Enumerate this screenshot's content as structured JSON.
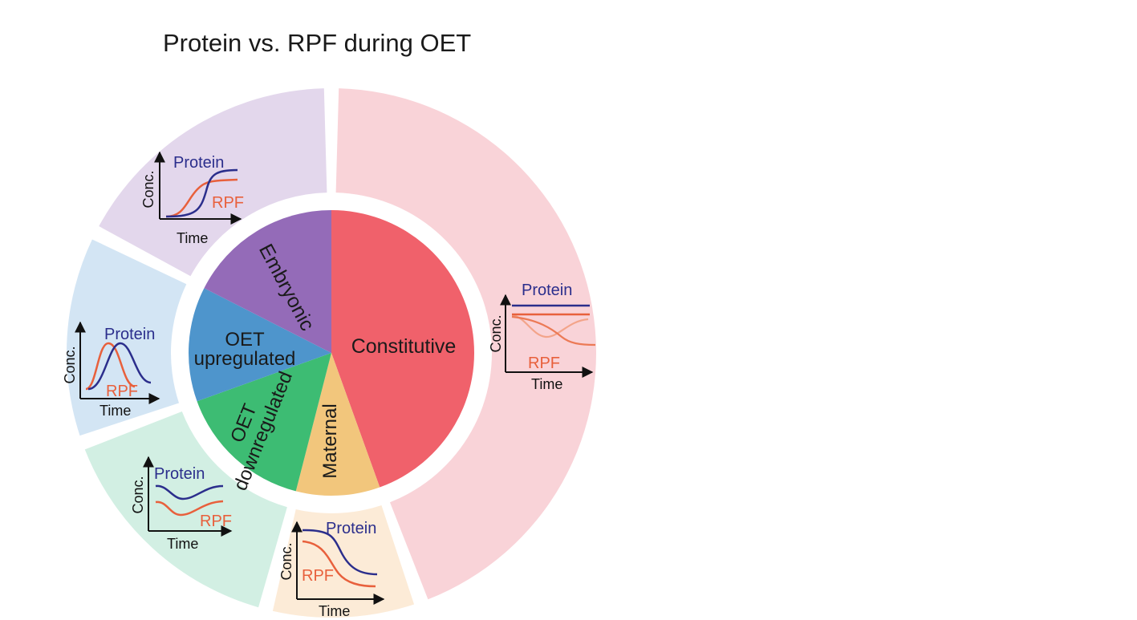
{
  "chart_data": {
    "type": "pie",
    "title": "Protein vs. RPF during OET",
    "categories": [
      "Constitutive",
      "Maternal",
      "OET downregulated",
      "OET upregulated",
      "Embryonic"
    ],
    "values": [
      44.5,
      9.5,
      15.5,
      13,
      17.5
    ],
    "colors": {
      "Constitutive": "#f0616b",
      "Maternal": "#f2c67c",
      "OET downregulated": "#3dbc73",
      "OET upregulated": "#4e95cc",
      "Embryonic": "#946bb8"
    },
    "outer_colors": {
      "Constitutive": "#f9d3d8",
      "Maternal": "#fcebd7",
      "OET downregulated": "#d2efe3",
      "OET upregulated": "#d3e5f4",
      "Embryonic": "#e3d7ec"
    },
    "line_colors": {
      "protein": "#2b2e8c",
      "rpf": "#e8603c"
    },
    "inset_axis_labels": {
      "x": "Time",
      "y": "Conc."
    },
    "inset_series": {
      "protein": "Protein",
      "rpf": "RPF"
    },
    "segment_labels": {
      "constitutive": "Constitutive",
      "maternal": "Maternal",
      "oet_down_line1": "OET",
      "oet_down_line2": "downregulated",
      "oet_up_line1": "OET",
      "oet_up_line2": "upregulated",
      "embryonic": "Embryonic"
    }
  }
}
